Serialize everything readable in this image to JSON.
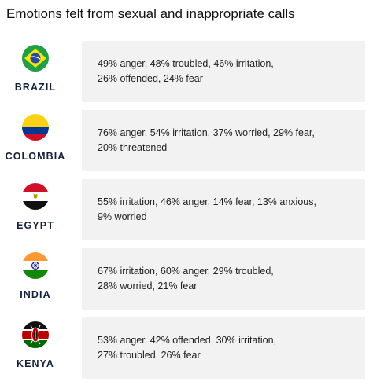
{
  "title": "Emotions felt from sexual and inappropriate calls",
  "countries": [
    {
      "name": "BRAZIL",
      "flag_icon": "brazil-flag-icon",
      "line1": "49% anger, 48% troubled, 46% irritation,",
      "line2": "26% offended, 24% fear"
    },
    {
      "name": "COLOMBIA",
      "flag_icon": "colombia-flag-icon",
      "line1": "76% anger, 54% irritation, 37% worried, 29% fear,",
      "line2": "20% threatened"
    },
    {
      "name": "EGYPT",
      "flag_icon": "egypt-flag-icon",
      "line1": "55% irritation, 46% anger, 14% fear, 13% anxious,",
      "line2": "9% worried"
    },
    {
      "name": "INDIA",
      "flag_icon": "india-flag-icon",
      "line1": "67% irritation, 60% anger, 29% troubled,",
      "line2": "28% worried, 21% fear"
    },
    {
      "name": "KENYA",
      "flag_icon": "kenya-flag-icon",
      "line1": "53% anger, 42% offended, 30% irritation,",
      "line2": "27% troubled, 26% fear"
    }
  ],
  "colors": {
    "panel_background": "#f2f2f2",
    "country_label": "#16213e",
    "text": "#222222"
  }
}
